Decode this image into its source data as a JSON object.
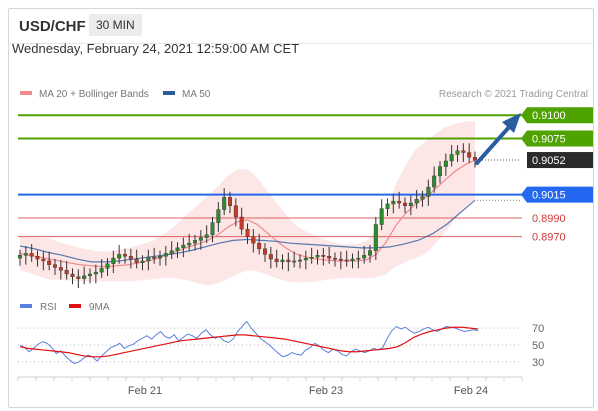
{
  "header": {
    "symbol": "USD/CHF",
    "timeframe": "30 MIN"
  },
  "datetime": "Wednesday, February 24, 2021 12:59:00 AM CET",
  "legend": {
    "ma20": "MA 20 + Bollinger Bands",
    "ma50": "MA 50",
    "credit": "Research © 2021 Trading Central",
    "rsi": "RSI",
    "ma9": "9MA"
  },
  "colors": {
    "ma20": "#f08a8a",
    "ma50": "#2a5da0",
    "bands_fill": "#fde3e3",
    "resistance": "#4ea300",
    "pivot": "#2468f2",
    "support": "#e06060",
    "current": "#2b2b2b",
    "rsi": "#5b7fe0",
    "rsi_ma": "#e01010",
    "arrow": "#2a5da0"
  },
  "chart_data": [
    {
      "type": "candlestick",
      "title": "USD/CHF",
      "x_ticks": [
        "Feb 21",
        "Feb 23",
        "Feb 24"
      ],
      "y_range": [
        0.8915,
        0.9112
      ],
      "candles_close": [
        0.895,
        0.8952,
        0.8949,
        0.8946,
        0.8944,
        0.894,
        0.8937,
        0.8934,
        0.893,
        0.8927,
        0.8925,
        0.8928,
        0.893,
        0.8932,
        0.8936,
        0.8941,
        0.8947,
        0.8951,
        0.8949,
        0.8946,
        0.8942,
        0.8944,
        0.8948,
        0.8947,
        0.8949,
        0.8952,
        0.8955,
        0.8958,
        0.8961,
        0.8963,
        0.8966,
        0.8969,
        0.8972,
        0.8985,
        0.8999,
        0.9012,
        0.9003,
        0.8991,
        0.8978,
        0.897,
        0.8963,
        0.8957,
        0.8951,
        0.8946,
        0.8943,
        0.8945,
        0.8943,
        0.8944,
        0.8945,
        0.8947,
        0.8948,
        0.895,
        0.8949,
        0.8947,
        0.8946,
        0.8945,
        0.8944,
        0.8946,
        0.8947,
        0.895,
        0.8955,
        0.8983,
        0.9,
        0.9005,
        0.9008,
        0.9006,
        0.9003,
        0.9006,
        0.901,
        0.9013,
        0.9023,
        0.9035,
        0.9045,
        0.9051,
        0.9058,
        0.9062,
        0.906,
        0.9055,
        0.9052
      ],
      "overlays": {
        "ma20": [
          0.8952,
          0.895,
          0.8948,
          0.8946,
          0.8944,
          0.8942,
          0.894,
          0.8939,
          0.8938,
          0.8938,
          0.8939,
          0.894,
          0.8942,
          0.8944,
          0.8947,
          0.8951,
          0.8955,
          0.8959,
          0.8962,
          0.8966,
          0.8972,
          0.898,
          0.8986,
          0.8988,
          0.8983,
          0.8974,
          0.8965,
          0.8957,
          0.8951,
          0.8948,
          0.8946,
          0.8945,
          0.8944,
          0.8944,
          0.8944,
          0.8945,
          0.8951,
          0.8964,
          0.8982,
          0.8995,
          0.9005,
          0.9012,
          0.9021,
          0.9031,
          0.904,
          0.9047,
          0.9052
        ],
        "ma50": [
          0.896,
          0.8957,
          0.8953,
          0.895,
          0.8946,
          0.8943,
          0.8943,
          0.8944,
          0.8946,
          0.8948,
          0.895,
          0.8952,
          0.8955,
          0.8959,
          0.8963,
          0.8966,
          0.8967,
          0.8966,
          0.8965,
          0.8963,
          0.8962,
          0.8961,
          0.896,
          0.8959,
          0.8958,
          0.8958,
          0.8959,
          0.8962,
          0.8966,
          0.8973,
          0.8983,
          0.8996,
          0.9009
        ]
      },
      "levels": [
        {
          "value": 0.91,
          "label": "0.9100",
          "kind": "resistance"
        },
        {
          "value": 0.9075,
          "label": "0.9075",
          "kind": "resistance"
        },
        {
          "value": 0.9052,
          "label": "0.9052",
          "kind": "current"
        },
        {
          "value": 0.9015,
          "label": "0.9015",
          "kind": "pivot"
        },
        {
          "value": 0.899,
          "label": "0.8990",
          "kind": "support"
        },
        {
          "value": 0.897,
          "label": "0.8970",
          "kind": "support"
        }
      ],
      "legend": [
        "MA 20 + Bollinger Bands",
        "MA 50"
      ]
    },
    {
      "type": "line",
      "title": "RSI",
      "y_ticks": [
        70,
        50,
        30
      ],
      "y_range": [
        18,
        82
      ],
      "series": [
        {
          "name": "RSI",
          "values": [
            50,
            47,
            42,
            46,
            51,
            54,
            52,
            47,
            40,
            43,
            37,
            32,
            28,
            30,
            34,
            38,
            36,
            31,
            37,
            42,
            47,
            49,
            52,
            46,
            49,
            51,
            55,
            58,
            61,
            57,
            62,
            66,
            60,
            58,
            62,
            55,
            59,
            63,
            61,
            58,
            64,
            68,
            62,
            58,
            60,
            55,
            53,
            57,
            66,
            72,
            78,
            70,
            64,
            58,
            54,
            50,
            45,
            40,
            36,
            38,
            41,
            39,
            38,
            44,
            47,
            52,
            49,
            44,
            41,
            45,
            43,
            39,
            37,
            42,
            45,
            43,
            41,
            43,
            46,
            44,
            47,
            58,
            67,
            72,
            69,
            71,
            67,
            64,
            66,
            69,
            71,
            68,
            66,
            69,
            72,
            71,
            70,
            68,
            66,
            67,
            68,
            67
          ]
        },
        {
          "name": "9MA",
          "values": [
            48,
            46,
            45,
            44,
            43,
            42,
            41,
            39,
            37,
            36,
            36,
            37,
            39,
            41,
            43,
            45,
            47,
            49,
            51,
            53,
            55,
            56,
            57,
            58,
            59,
            60,
            61,
            62,
            62,
            61,
            60,
            59,
            58,
            57,
            55,
            53,
            51,
            49,
            47,
            45,
            43,
            42,
            42,
            43,
            44,
            45,
            46,
            48,
            53,
            59,
            63,
            66,
            68,
            70,
            71,
            71,
            70,
            69
          ]
        }
      ],
      "legend": [
        "RSI",
        "9MA"
      ]
    }
  ]
}
